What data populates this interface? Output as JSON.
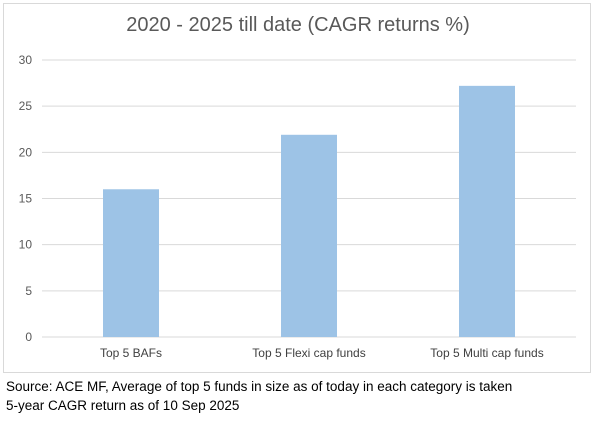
{
  "chart_data": {
    "type": "bar",
    "title": "2020 - 2025 till date (CAGR returns %)",
    "categories": [
      "Top 5 BAFs",
      "Top 5 Flexi cap funds",
      "Top 5 Multi cap funds"
    ],
    "values": [
      16.0,
      21.9,
      27.2
    ],
    "ylim": [
      0,
      30
    ],
    "yticks": [
      0,
      5,
      10,
      15,
      20,
      25,
      30
    ],
    "grid": true,
    "legend": "none",
    "bar_color": "#9dc3e6",
    "xlabel": "",
    "ylabel": ""
  },
  "source": {
    "line1": "Source: ACE MF, Average of top 5 funds in size as of today in each category is taken",
    "line2": "5-year CAGR return as of 10 Sep 2025"
  }
}
